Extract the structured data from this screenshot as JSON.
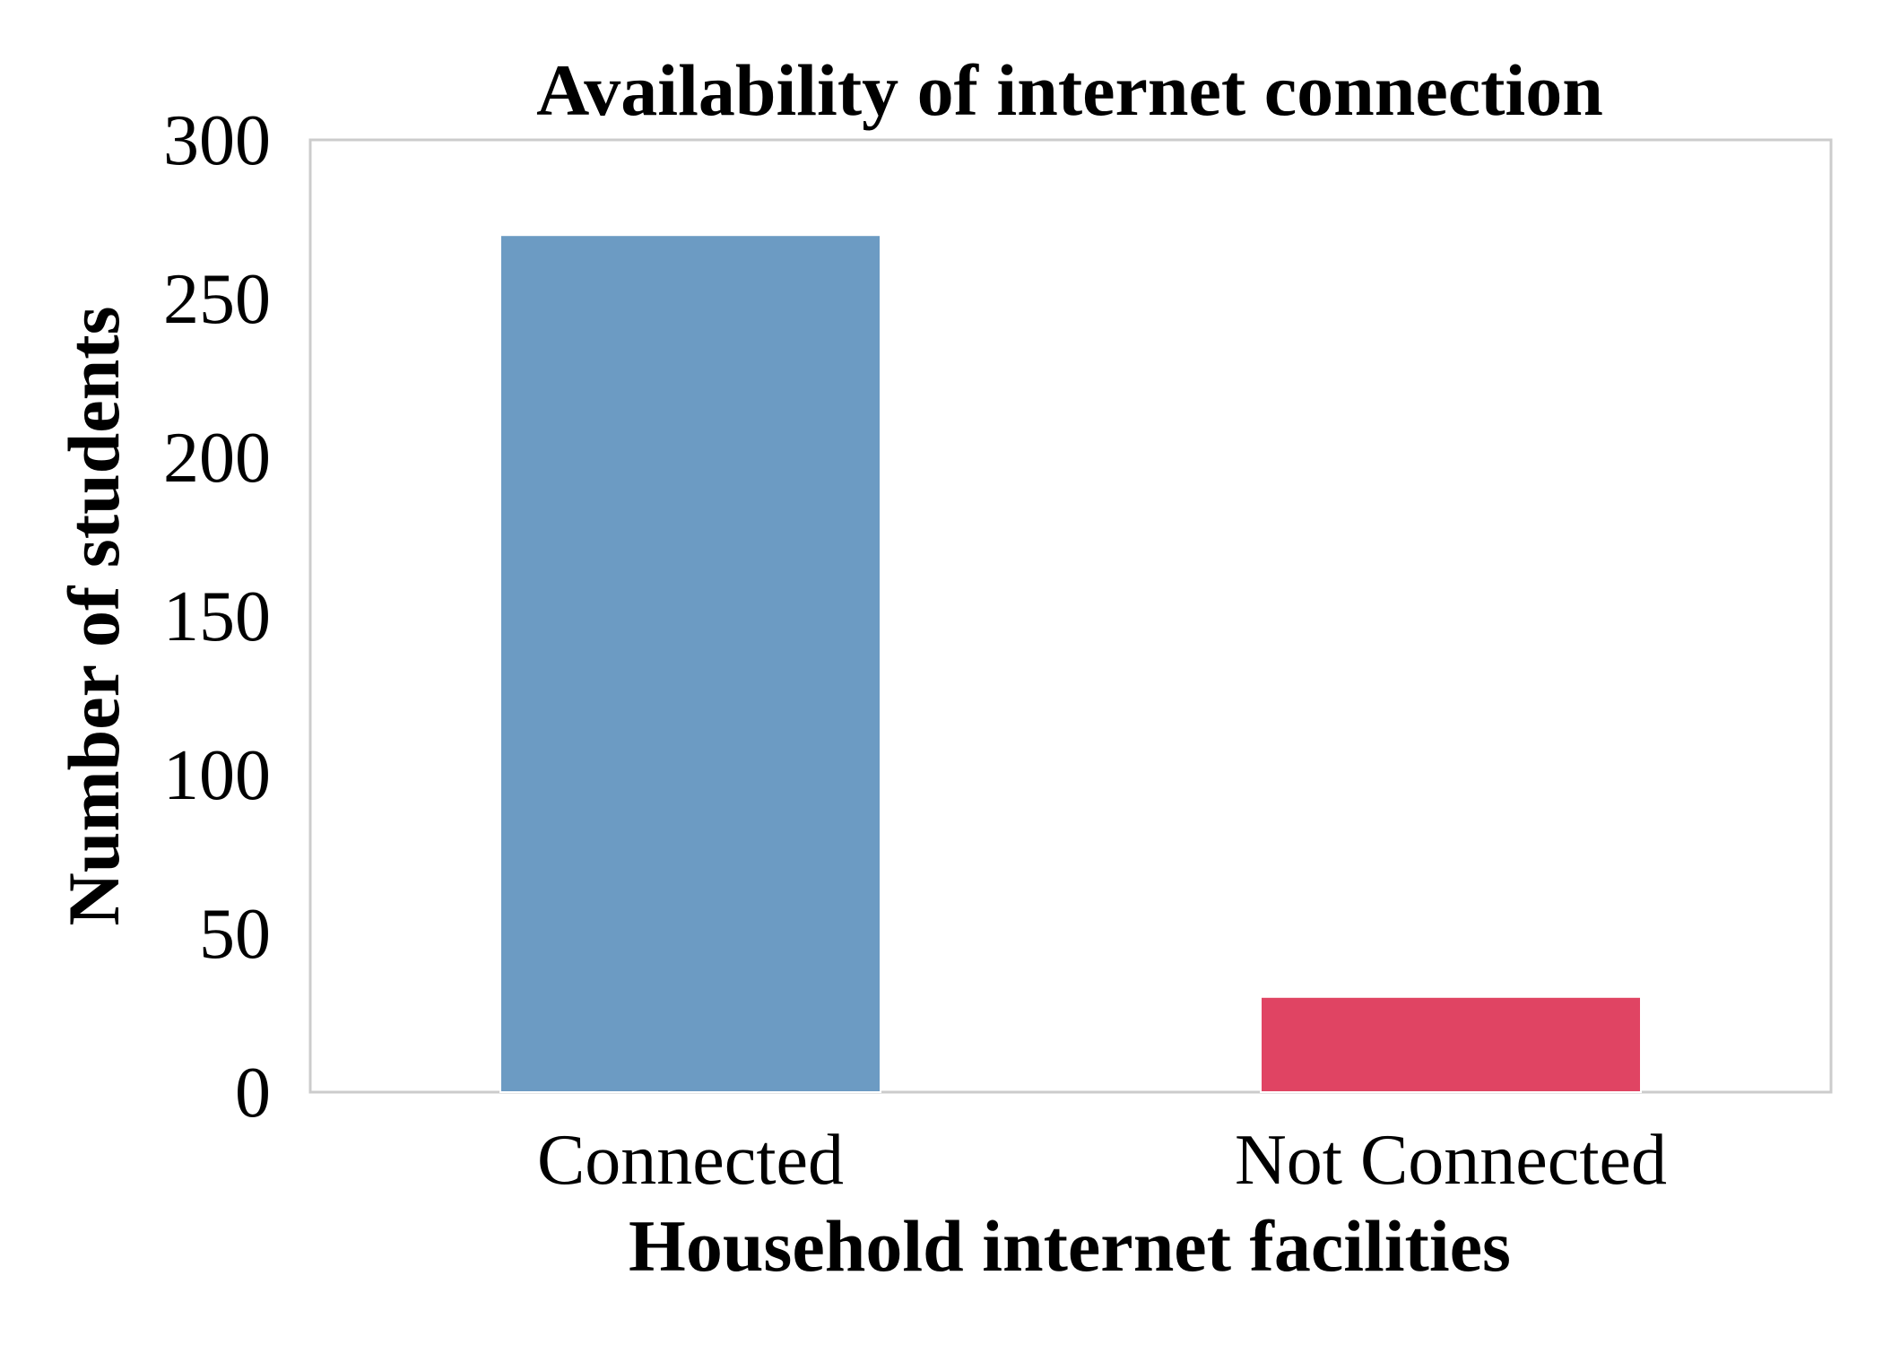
{
  "chart_data": {
    "type": "bar",
    "title": "Availability of internet connection",
    "xlabel": "Household internet facilities",
    "ylabel": "Number of students",
    "categories": [
      "Connected",
      "Not Connected"
    ],
    "values": [
      270,
      30
    ],
    "colors": [
      "#6c9bc3",
      "#e04463"
    ],
    "ylim": [
      0,
      300
    ],
    "yticks": [
      0,
      50,
      100,
      150,
      200,
      250,
      300
    ],
    "grid": false,
    "legend": "none"
  }
}
